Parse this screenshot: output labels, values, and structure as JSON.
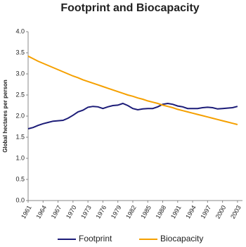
{
  "chart_data": {
    "type": "line",
    "title": "Footprint and Biocapacity",
    "y_label": "Global hectares per person",
    "x": [
      1961,
      1962,
      1963,
      1964,
      1965,
      1966,
      1967,
      1968,
      1969,
      1970,
      1971,
      1972,
      1973,
      1974,
      1975,
      1976,
      1977,
      1978,
      1979,
      1980,
      1981,
      1982,
      1983,
      1984,
      1985,
      1986,
      1987,
      1988,
      1989,
      1990,
      1991,
      1992,
      1993,
      1994,
      1995,
      1996,
      1997,
      1998,
      1999,
      2000,
      2001,
      2002,
      2003
    ],
    "series": [
      {
        "name": "Footprint",
        "color": "#1c1c78",
        "values": [
          1.7,
          1.73,
          1.78,
          1.82,
          1.85,
          1.88,
          1.89,
          1.9,
          1.95,
          2.02,
          2.1,
          2.14,
          2.21,
          2.23,
          2.22,
          2.18,
          2.22,
          2.25,
          2.26,
          2.3,
          2.25,
          2.18,
          2.15,
          2.17,
          2.18,
          2.18,
          2.22,
          2.28,
          2.3,
          2.28,
          2.24,
          2.22,
          2.18,
          2.18,
          2.18,
          2.2,
          2.21,
          2.2,
          2.17,
          2.18,
          2.19,
          2.2,
          2.23
        ]
      },
      {
        "name": "Biocapacity",
        "color": "#f5a000",
        "values": [
          3.42,
          3.36,
          3.3,
          3.25,
          3.2,
          3.15,
          3.1,
          3.05,
          3.0,
          2.95,
          2.91,
          2.86,
          2.82,
          2.78,
          2.74,
          2.7,
          2.66,
          2.62,
          2.58,
          2.54,
          2.5,
          2.47,
          2.43,
          2.4,
          2.36,
          2.33,
          2.3,
          2.26,
          2.23,
          2.2,
          2.16,
          2.13,
          2.1,
          2.07,
          2.04,
          2.01,
          1.98,
          1.95,
          1.92,
          1.89,
          1.86,
          1.83,
          1.8
        ]
      }
    ],
    "xlim": [
      1961,
      2004
    ],
    "xticks": [
      1961,
      1964,
      1967,
      1970,
      1973,
      1976,
      1979,
      1982,
      1985,
      1988,
      1991,
      1994,
      1997,
      2000,
      2003
    ],
    "ylim": [
      0,
      4
    ],
    "yticks": [
      {
        "value": 0,
        "label": "0.0"
      },
      0.5,
      {
        "value": 1,
        "label": "1.0"
      },
      1.5,
      {
        "value": 2,
        "label": "2.0"
      },
      2.5,
      {
        "value": 3,
        "label": "3.0"
      },
      3.5,
      {
        "value": 4,
        "label": "4.0"
      }
    ],
    "legend": "bottom"
  }
}
